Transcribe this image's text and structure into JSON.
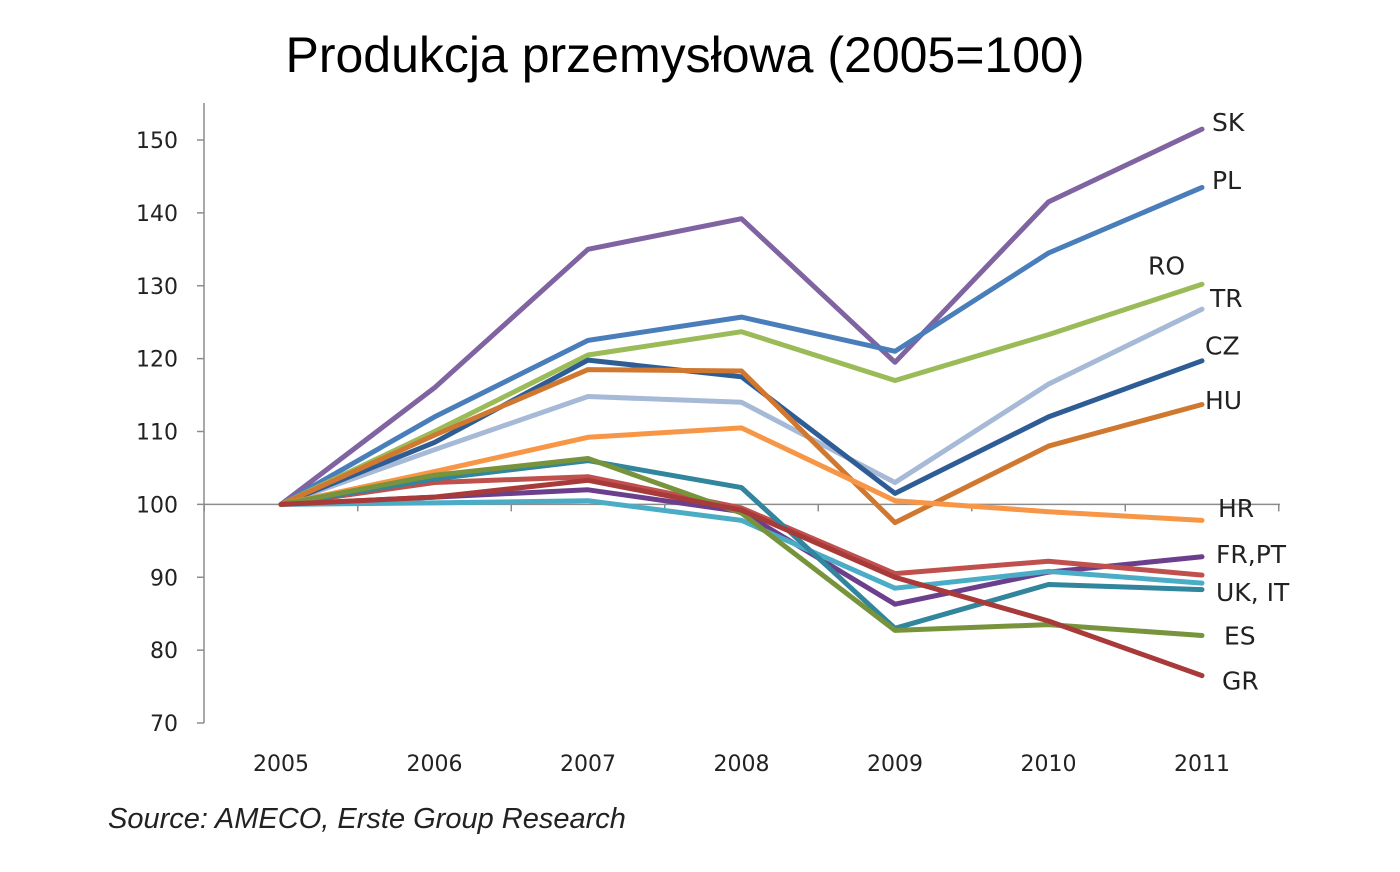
{
  "chart_data": {
    "type": "line",
    "title": "Produkcja przemysłowa (2005=100)",
    "source": "Source: AMECO, Erste Group Research",
    "xlabel": "",
    "ylabel": "",
    "x": [
      "2005",
      "2006",
      "2007",
      "2008",
      "2009",
      "2010",
      "2011"
    ],
    "ylim": [
      70,
      150
    ],
    "yticks": [
      70,
      80,
      90,
      100,
      110,
      120,
      130,
      140,
      150
    ],
    "baseline": 100,
    "grid": false,
    "legend": "inline labels at line ends",
    "series": [
      {
        "name": "SK",
        "color": "#8064a2",
        "values": [
          100,
          116,
          135,
          139.2,
          119.5,
          141.5,
          151.5
        ]
      },
      {
        "name": "PL",
        "color": "#4a7ebb",
        "values": [
          100,
          112,
          122.5,
          125.7,
          121,
          134.5,
          143.5
        ]
      },
      {
        "name": "RO",
        "color": "#9bbb59",
        "values": [
          100,
          110,
          120.5,
          123.7,
          117,
          123.3,
          130.2
        ]
      },
      {
        "name": "TR",
        "color": "#a6b9d6",
        "values": [
          100,
          107.5,
          114.8,
          114,
          103,
          116.5,
          126.8
        ]
      },
      {
        "name": "CZ",
        "color": "#2e5d96",
        "values": [
          100,
          108.5,
          119.8,
          117.5,
          101.5,
          112,
          119.7
        ]
      },
      {
        "name": "HU",
        "color": "#d07830",
        "values": [
          100,
          109.5,
          118.5,
          118.3,
          97.5,
          108,
          113.7
        ]
      },
      {
        "name": "HR",
        "color": "#f79646",
        "values": [
          100,
          104.5,
          109.2,
          110.5,
          100.5,
          99,
          97.8
        ]
      },
      {
        "name": "FR",
        "color": "#6b3f8c",
        "values": [
          100,
          101,
          102,
          99,
          86.3,
          90.7,
          92.8
        ]
      },
      {
        "name": "PT",
        "color": "#c0504d",
        "values": [
          100,
          103,
          103.8,
          99.5,
          90.5,
          92.2,
          90.3
        ]
      },
      {
        "name": "UK",
        "color": "#4bacc6",
        "values": [
          100,
          100.2,
          100.5,
          97.8,
          88.5,
          90.8,
          89.2
        ]
      },
      {
        "name": "IT",
        "color": "#31859c",
        "values": [
          100,
          103.5,
          106,
          102.3,
          83,
          89,
          88.3
        ]
      },
      {
        "name": "ES",
        "color": "#77933c",
        "values": [
          100,
          104,
          106.3,
          98.8,
          82.7,
          83.5,
          82
        ]
      },
      {
        "name": "GR",
        "color": "#a83a3a",
        "values": [
          100,
          101,
          103.3,
          99.2,
          90,
          84,
          76.5
        ]
      }
    ],
    "line_labels": [
      {
        "text": "SK",
        "y": 152.5
      },
      {
        "text": "PL",
        "y": 144.5
      },
      {
        "text": "RO",
        "y": 132.8
      },
      {
        "text": "TR",
        "y": 128.3
      },
      {
        "text": "CZ",
        "y": 121.8
      },
      {
        "text": "HU",
        "y": 114.3
      },
      {
        "text": "HR",
        "y": 99.5
      },
      {
        "text": "FR,PT",
        "y": 93.2
      },
      {
        "text": "UK, IT",
        "y": 88
      },
      {
        "text": "ES",
        "y": 82
      },
      {
        "text": "GR",
        "y": 75.8
      }
    ]
  }
}
